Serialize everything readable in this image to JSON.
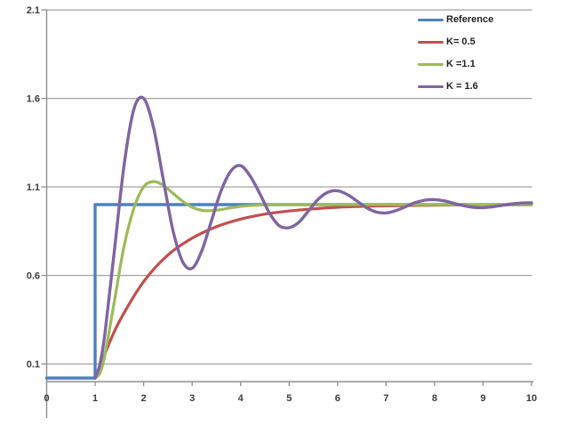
{
  "chart_data": {
    "type": "line",
    "title": "",
    "xlabel": "",
    "ylabel": "",
    "grid": "horizontal-major",
    "legend_position": "top-right",
    "background": "#ffffff",
    "colors": {
      "gridline": "#a3a3a3",
      "axis": "#8f8f8f",
      "tick_label": "#3d3d3d",
      "legend_text": "#222222"
    },
    "x_axis": {
      "min": 0,
      "max": 10,
      "tick_labels": [
        "0",
        "1",
        "2",
        "3",
        "4",
        "5",
        "6",
        "7",
        "8",
        "9",
        "10"
      ]
    },
    "y_axis": {
      "min": 0,
      "max": 2.1,
      "tick_values": [
        0.1,
        0.6,
        1.1,
        1.6,
        2.1
      ],
      "tick_labels": [
        "0.1",
        "0.6",
        "1.1",
        "1.6",
        "2.1"
      ]
    },
    "series": [
      {
        "name": "Reference",
        "color": "#4f81bd",
        "width": 3.4,
        "smooth": false,
        "points": [
          [
            0,
            0.02
          ],
          [
            1,
            0.02
          ],
          [
            1,
            1
          ],
          [
            10,
            1
          ]
        ]
      },
      {
        "name": "K= 0.5",
        "color": "#c0504d",
        "width": 3.2,
        "smooth": true,
        "points": [
          [
            1,
            0.02
          ],
          [
            1.1,
            0.08
          ],
          [
            1.25,
            0.19
          ],
          [
            1.5,
            0.34
          ],
          [
            2,
            0.565
          ],
          [
            2.5,
            0.715
          ],
          [
            3,
            0.81
          ],
          [
            3.5,
            0.875
          ],
          [
            4,
            0.918
          ],
          [
            4.5,
            0.946
          ],
          [
            5,
            0.964
          ],
          [
            5.5,
            0.976
          ],
          [
            6,
            0.985
          ],
          [
            6.5,
            0.99
          ],
          [
            7,
            0.993
          ],
          [
            7.5,
            0.995
          ],
          [
            8,
            0.997
          ],
          [
            8.5,
            0.998
          ],
          [
            9,
            0.999
          ],
          [
            9.5,
            0.999
          ],
          [
            10,
            1
          ]
        ]
      },
      {
        "name": "K =1.1",
        "color": "#9bbb59",
        "width": 3.2,
        "smooth": true,
        "points": [
          [
            1,
            0.02
          ],
          [
            1.1,
            0.05
          ],
          [
            1.2,
            0.15
          ],
          [
            1.4,
            0.46
          ],
          [
            1.6,
            0.77
          ],
          [
            1.8,
            0.98
          ],
          [
            2,
            1.1
          ],
          [
            2.2,
            1.13
          ],
          [
            2.4,
            1.11
          ],
          [
            2.6,
            1.065
          ],
          [
            2.8,
            1.02
          ],
          [
            3,
            0.985
          ],
          [
            3.2,
            0.968
          ],
          [
            3.4,
            0.966
          ],
          [
            3.6,
            0.972
          ],
          [
            3.8,
            0.982
          ],
          [
            4,
            0.99
          ],
          [
            4.3,
            0.996
          ],
          [
            4.6,
            0.999
          ],
          [
            5,
            1
          ],
          [
            6,
            1
          ],
          [
            7,
            1
          ],
          [
            8,
            1
          ],
          [
            9,
            1
          ],
          [
            10,
            1
          ]
        ]
      },
      {
        "name": "K = 1.6",
        "color": "#8064a2",
        "width": 3.4,
        "smooth": true,
        "points": [
          [
            1,
            0.02
          ],
          [
            1.1,
            0.1
          ],
          [
            1.2,
            0.27
          ],
          [
            1.4,
            0.75
          ],
          [
            1.6,
            1.23
          ],
          [
            1.8,
            1.54
          ],
          [
            2,
            1.6
          ],
          [
            2.2,
            1.44
          ],
          [
            2.4,
            1.15
          ],
          [
            2.6,
            0.86
          ],
          [
            2.8,
            0.68
          ],
          [
            3,
            0.64
          ],
          [
            3.2,
            0.74
          ],
          [
            3.4,
            0.91
          ],
          [
            3.6,
            1.08
          ],
          [
            3.8,
            1.19
          ],
          [
            4,
            1.22
          ],
          [
            4.2,
            1.16
          ],
          [
            4.4,
            1.06
          ],
          [
            4.6,
            0.95
          ],
          [
            4.8,
            0.88
          ],
          [
            5,
            0.87
          ],
          [
            5.2,
            0.9
          ],
          [
            5.4,
            0.965
          ],
          [
            5.6,
            1.03
          ],
          [
            5.8,
            1.07
          ],
          [
            6,
            1.078
          ],
          [
            6.2,
            1.057
          ],
          [
            6.4,
            1.02
          ],
          [
            6.6,
            0.982
          ],
          [
            6.8,
            0.958
          ],
          [
            7,
            0.953
          ],
          [
            7.2,
            0.966
          ],
          [
            7.4,
            0.988
          ],
          [
            7.6,
            1.011
          ],
          [
            7.8,
            1.025
          ],
          [
            8,
            1.028
          ],
          [
            8.2,
            1.021
          ],
          [
            8.4,
            1.007
          ],
          [
            8.6,
            0.994
          ],
          [
            8.8,
            0.985
          ],
          [
            9,
            0.983
          ],
          [
            9.2,
            0.988
          ],
          [
            9.4,
            0.996
          ],
          [
            9.6,
            1.004
          ],
          [
            9.8,
            1.009
          ],
          [
            10,
            1.01
          ]
        ]
      }
    ]
  }
}
